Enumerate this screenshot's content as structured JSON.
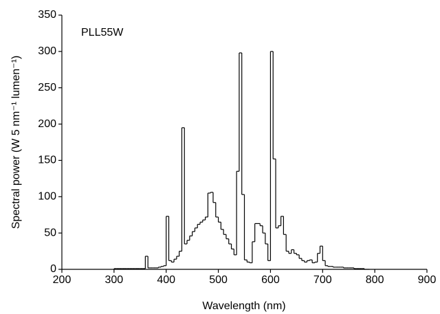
{
  "chart_data": {
    "type": "histogram",
    "annotation": "PLL55W",
    "x_label": "Wavelength (nm)",
    "y_label": "Spectral power (W 5 nm⁻¹ lumen⁻¹)",
    "color": "#000000",
    "bins": [
      300,
      305,
      310,
      315,
      320,
      325,
      330,
      335,
      340,
      345,
      350,
      355,
      360,
      365,
      370,
      375,
      380,
      385,
      390,
      395,
      400,
      405,
      410,
      415,
      420,
      425,
      430,
      435,
      440,
      445,
      450,
      455,
      460,
      465,
      470,
      475,
      480,
      485,
      490,
      495,
      500,
      505,
      510,
      515,
      520,
      525,
      530,
      535,
      540,
      545,
      550,
      555,
      560,
      565,
      570,
      575,
      580,
      585,
      590,
      595,
      600,
      605,
      610,
      615,
      620,
      625,
      630,
      635,
      640,
      645,
      650,
      655,
      660,
      665,
      670,
      675,
      680,
      685,
      690,
      695,
      700,
      705,
      710,
      715,
      720,
      725,
      730,
      735,
      740,
      745,
      750,
      755,
      760,
      765,
      770,
      775,
      780,
      785,
      790
    ],
    "values": [
      1,
      1,
      1,
      1,
      1,
      1,
      1,
      1,
      1,
      1,
      1,
      1,
      18,
      2,
      2,
      2,
      2,
      3,
      4,
      5,
      73,
      12,
      10,
      14,
      18,
      25,
      195,
      35,
      40,
      46,
      52,
      57,
      62,
      65,
      68,
      72,
      105,
      106,
      92,
      72,
      65,
      55,
      48,
      42,
      35,
      28,
      20,
      135,
      298,
      103,
      13,
      10,
      9,
      38,
      63,
      63,
      60,
      50,
      35,
      12,
      300,
      152,
      57,
      60,
      73,
      48,
      25,
      22,
      27,
      22,
      20,
      15,
      12,
      10,
      12,
      13,
      9,
      10,
      22,
      32,
      12,
      5,
      4,
      4,
      3,
      3,
      3,
      3,
      2,
      2,
      2,
      2,
      1,
      1,
      1,
      1,
      0,
      0
    ],
    "xlim": [
      200,
      900
    ],
    "xticks": [
      200,
      300,
      400,
      500,
      600,
      700,
      800,
      900
    ],
    "ylim": [
      0,
      350
    ],
    "yticks": [
      0,
      50,
      100,
      150,
      200,
      250,
      300,
      350
    ]
  }
}
